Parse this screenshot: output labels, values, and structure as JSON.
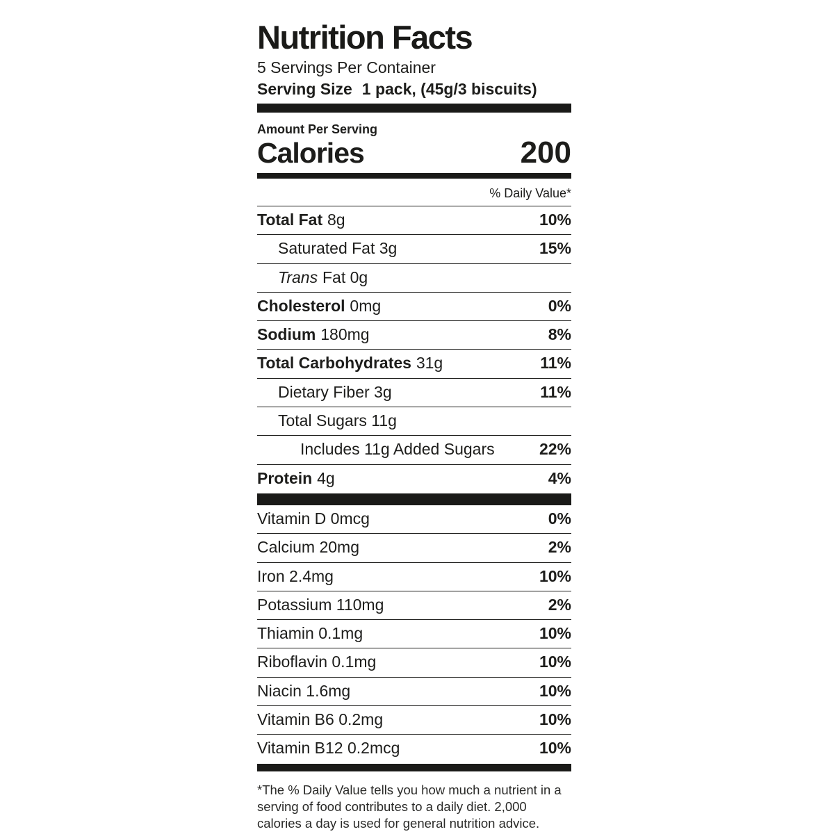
{
  "header": {
    "title": "Nutrition Facts",
    "servings_per_container": "5 Servings Per Container",
    "serving_size_label": "Serving Size",
    "serving_size_value": "1 pack, (45g/3 biscuits)"
  },
  "calories_section": {
    "amount_per_serving": "Amount Per Serving",
    "calories_label": "Calories",
    "calories_value": "200"
  },
  "daily_value_header": "% Daily Value*",
  "rows": [
    {
      "bold": "Total Fat",
      "rest": "8g",
      "dv": "10%"
    },
    {
      "rest": "Saturated Fat 3g",
      "dv": "15%"
    },
    {
      "italic": "Trans",
      "rest": "Fat 0g",
      "dv": ""
    },
    {
      "bold": "Cholesterol",
      "rest": "0mg",
      "dv": "0%"
    },
    {
      "bold": "Sodium",
      "rest": "180mg",
      "dv": "8%"
    },
    {
      "bold": "Total Carbohydrates",
      "rest": "31g",
      "dv": "11%"
    },
    {
      "rest": "Dietary Fiber 3g",
      "dv": "11%"
    },
    {
      "rest": "Total Sugars 11g",
      "dv": ""
    },
    {
      "rest": "Includes 11g Added Sugars",
      "dv": "22%"
    },
    {
      "bold": "Protein",
      "rest": "4g",
      "dv": "4%"
    }
  ],
  "vitamins": [
    {
      "name": "Vitamin D 0mcg",
      "dv": "0%"
    },
    {
      "name": "Calcium 20mg",
      "dv": "2%"
    },
    {
      "name": "Iron 2.4mg",
      "dv": "10%"
    },
    {
      "name": "Potassium 110mg",
      "dv": "2%"
    },
    {
      "name": "Thiamin 0.1mg",
      "dv": "10%"
    },
    {
      "name": "Riboflavin 0.1mg",
      "dv": "10%"
    },
    {
      "name": "Niacin 1.6mg",
      "dv": "10%"
    },
    {
      "name": "Vitamin B6 0.2mg",
      "dv": "10%"
    },
    {
      "name": "Vitamin B12 0.2mcg",
      "dv": "10%"
    }
  ],
  "footnote": "*The % Daily Value tells you how much a nutrient in a serving of food contributes to a daily diet. 2,000 calories a day is used for general nutrition advice."
}
